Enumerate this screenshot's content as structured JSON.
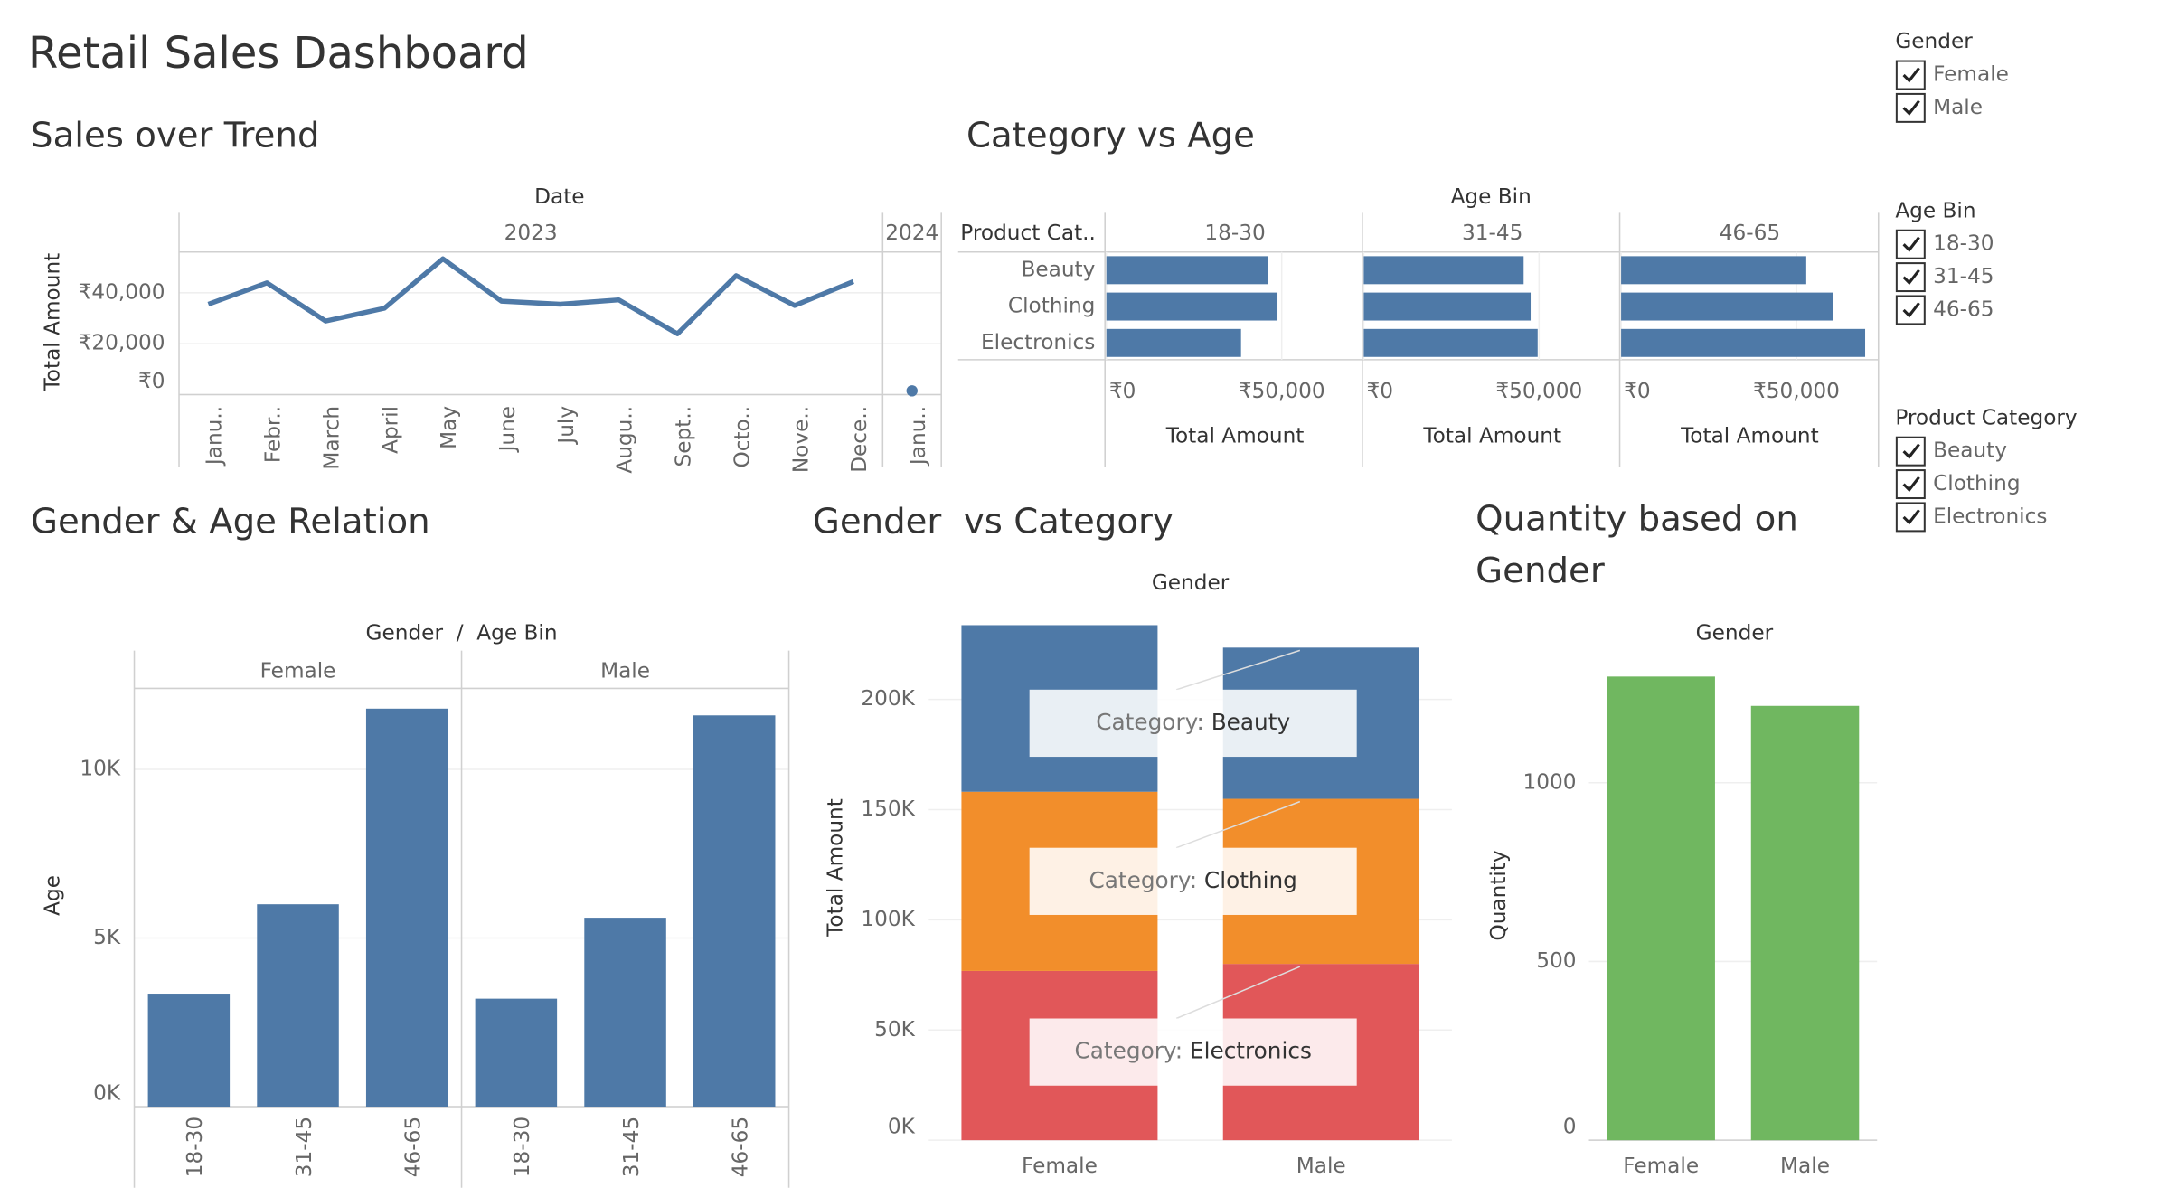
{
  "title": "Retail Sales Dashboard",
  "chart_data": [
    {
      "type": "line",
      "title": "Sales over Trend",
      "header": "Date",
      "y_label": "Total Amount",
      "color": "#4e79a7",
      "panes": [
        {
          "label": "2023",
          "categories": [
            "Janu..",
            "Febr..",
            "March",
            "April",
            "May",
            "June",
            "July",
            "Augu..",
            "Sept..",
            "Octo..",
            "Nove..",
            "Dece.."
          ],
          "values": [
            35500,
            43900,
            28900,
            33900,
            53300,
            36700,
            35500,
            37200,
            23900,
            46700,
            35000,
            44400
          ]
        },
        {
          "label": "2024",
          "categories": [
            "Janu.."
          ],
          "values": [
            1500
          ]
        }
      ],
      "ylim": [
        0,
        56000
      ],
      "yticks": [
        {
          "value": 0,
          "label": "₹0"
        },
        {
          "value": 20000,
          "label": "₹20,000"
        },
        {
          "value": 40000,
          "label": "₹40,000"
        }
      ],
      "grid": true
    },
    {
      "type": "hbar",
      "title": "Category vs Age",
      "header": "Age Bin",
      "row_header": "Product Cat..",
      "x_label": "Total Amount",
      "color": "#4e79a7",
      "categories": [
        "Beauty",
        "Clothing",
        "Electronics"
      ],
      "panes": [
        {
          "label": "18-30",
          "values": [
            46000,
            48800,
            38400
          ]
        },
        {
          "label": "31-45",
          "values": [
            45600,
            47600,
            49600
          ]
        },
        {
          "label": "46-65",
          "values": [
            52800,
            60400,
            69600
          ]
        }
      ],
      "xlim": [
        0,
        73000
      ],
      "xticks": [
        {
          "value": 0,
          "label": "₹0"
        },
        {
          "value": 50000,
          "label": "₹50,000"
        }
      ],
      "grid": true
    },
    {
      "type": "bar",
      "title": "Gender & Age Relation",
      "header": "Gender  /  Age Bin",
      "y_label": "Age",
      "color": "#4e79a7",
      "categories": [
        "18-30",
        "31-45",
        "46-65"
      ],
      "panes": [
        {
          "label": "Female",
          "values": [
            3350,
            6000,
            11800
          ]
        },
        {
          "label": "Male",
          "values": [
            3200,
            5600,
            11600
          ]
        }
      ],
      "ylim": [
        0,
        12400
      ],
      "yticks": [
        {
          "value": 0,
          "label": "0K"
        },
        {
          "value": 5000,
          "label": "5K"
        },
        {
          "value": 10000,
          "label": "10K"
        }
      ],
      "grid": true
    },
    {
      "type": "stacked_bar",
      "title": "Gender  vs Category",
      "header": "Gender",
      "y_label": "Total Amount",
      "categories": [
        "Female",
        "Male"
      ],
      "series": [
        {
          "name": "Electronics",
          "color": "#e15759",
          "values": [
            76800,
            80000
          ]
        },
        {
          "name": "Clothing",
          "color": "#f28e2b",
          "values": [
            81300,
            74900
          ]
        },
        {
          "name": "Beauty",
          "color": "#4e79a7",
          "values": [
            75600,
            68600
          ]
        }
      ],
      "annotation_prefix": "Category:",
      "ylim": [
        0,
        238000
      ],
      "yticks": [
        {
          "value": 0,
          "label": "0K"
        },
        {
          "value": 50000,
          "label": "50K"
        },
        {
          "value": 100000,
          "label": "100K"
        },
        {
          "value": 150000,
          "label": "150K"
        },
        {
          "value": 200000,
          "label": "200K"
        }
      ],
      "grid": true
    },
    {
      "type": "bar",
      "title": "Quantity based on Gender",
      "header": "Gender",
      "y_label": "Quantity",
      "color": "#70b760",
      "categories": [
        "Female",
        "Male"
      ],
      "values": [
        1297,
        1215
      ],
      "ylim": [
        0,
        1350
      ],
      "yticks": [
        0,
        500,
        1000
      ],
      "grid": true
    }
  ],
  "filters": [
    {
      "title": "Gender",
      "options": [
        "Female",
        "Male"
      ]
    },
    {
      "title": "Age Bin",
      "options": [
        "18-30",
        "31-45",
        "46-65"
      ]
    },
    {
      "title": "Product Category",
      "options": [
        "Beauty",
        "Clothing",
        "Electronics"
      ]
    }
  ]
}
